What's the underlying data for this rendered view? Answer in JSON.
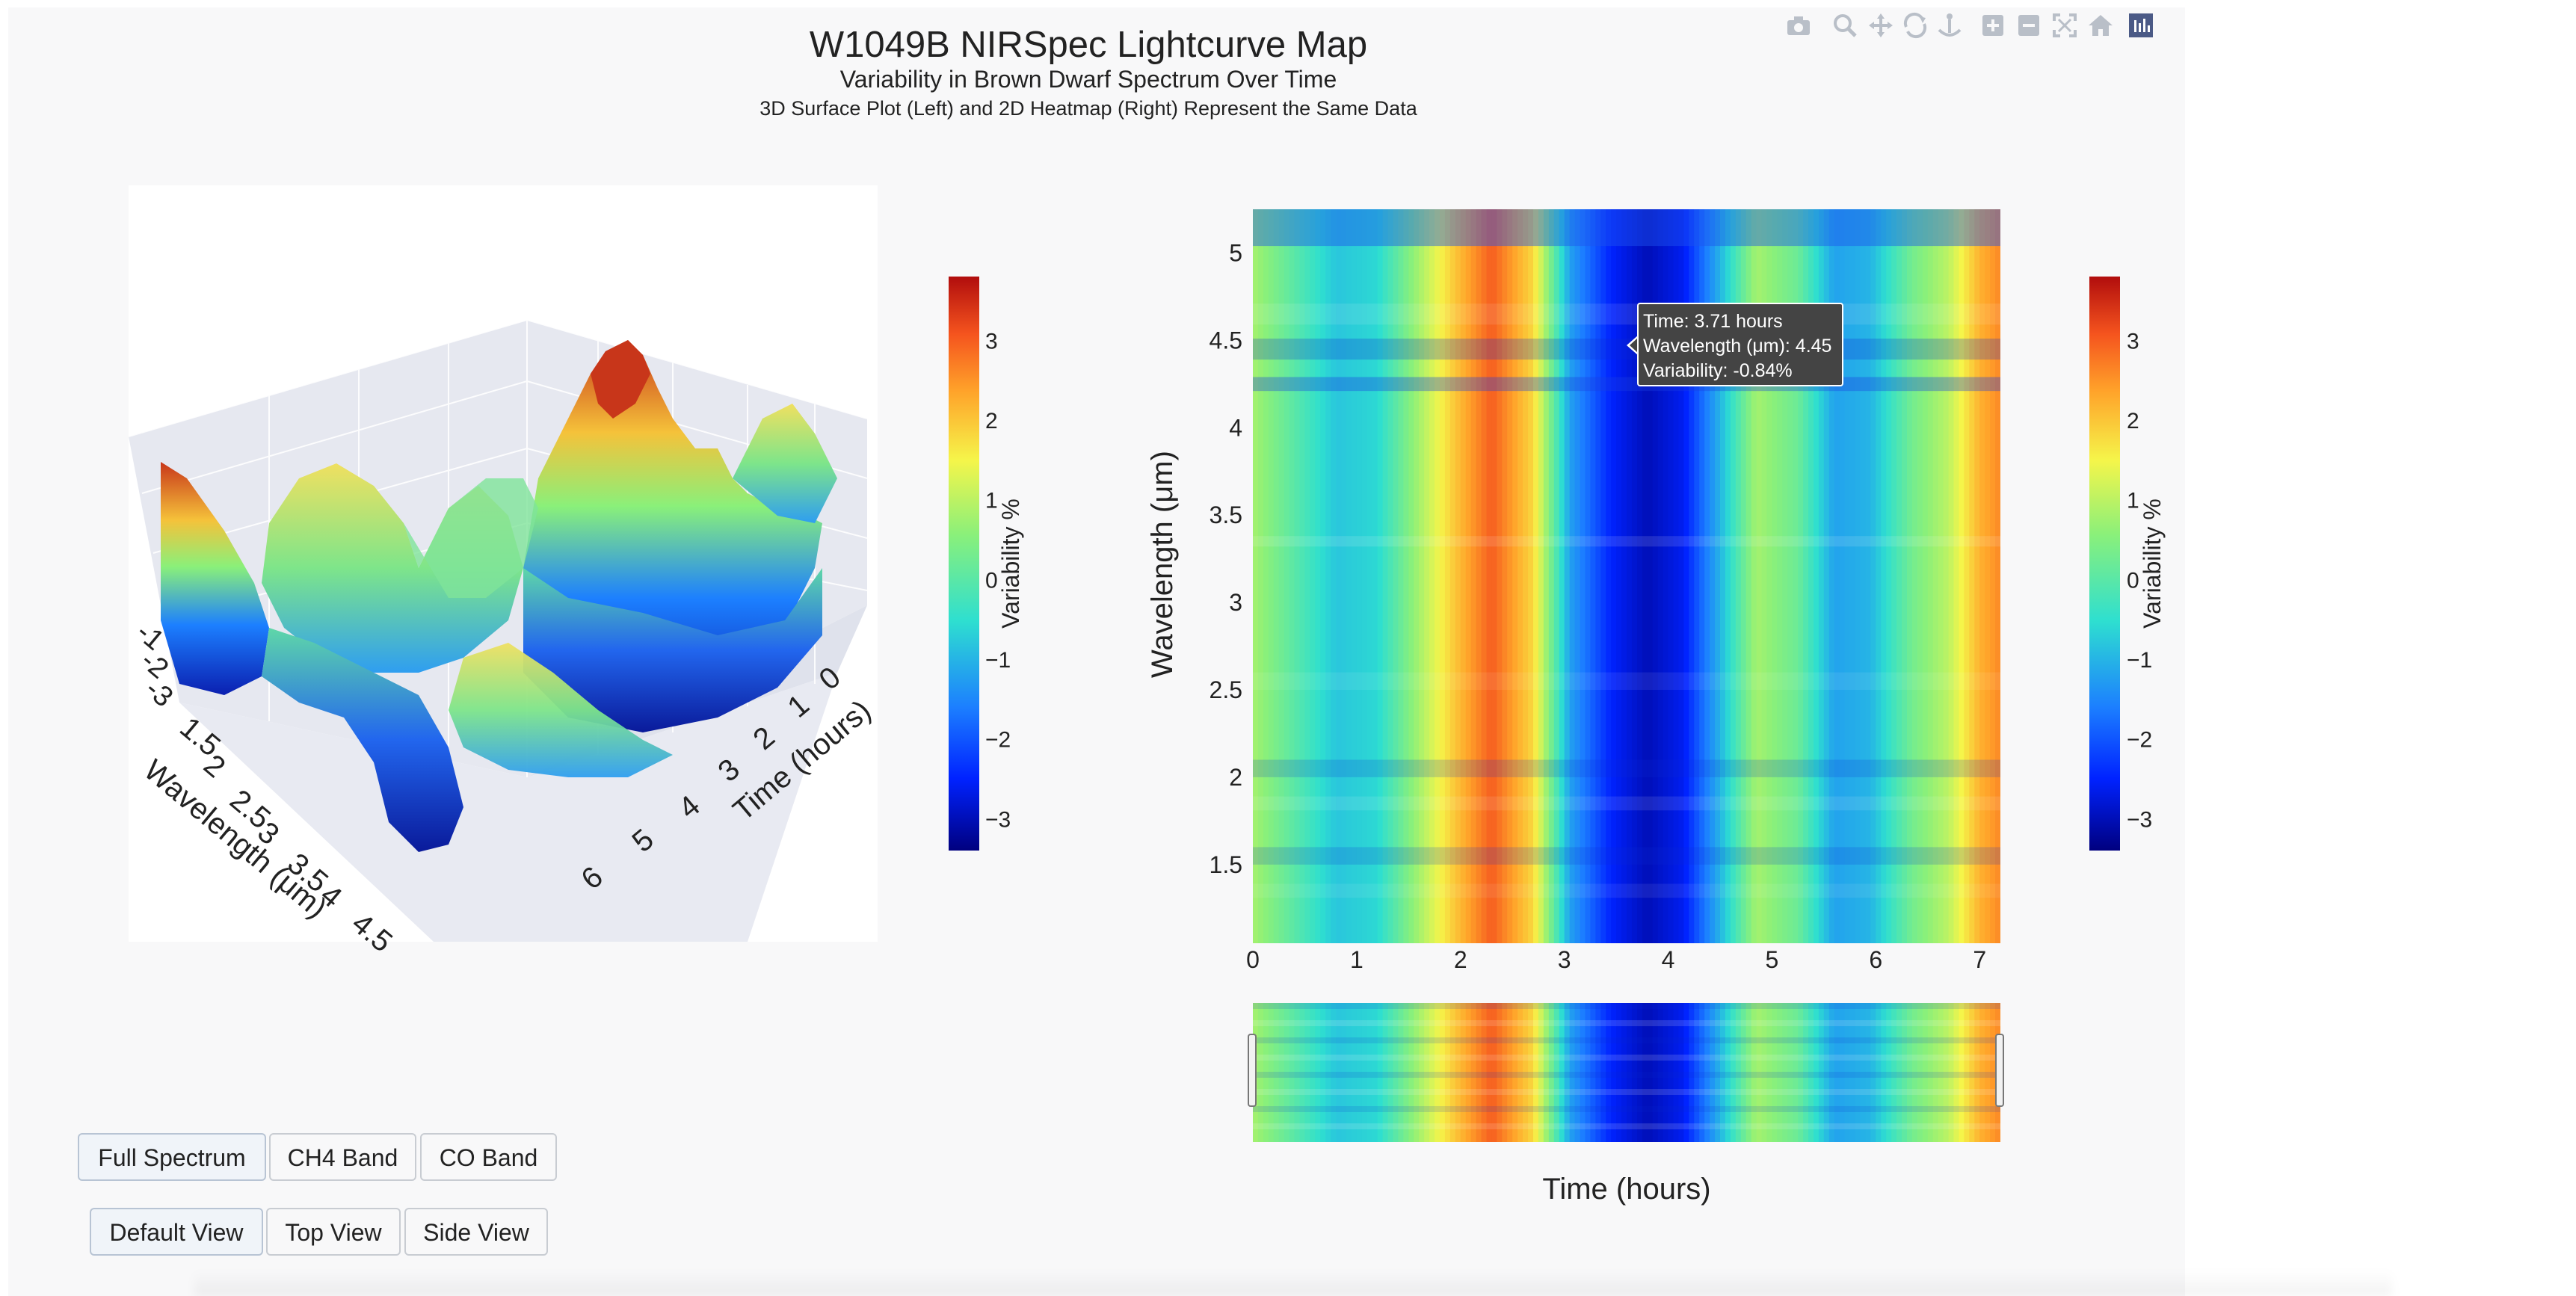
{
  "title": "W1049B NIRSpec Lightcurve Map",
  "subtitle": "Variability in Brown Dwarf Spectrum Over Time",
  "subtitle2": "3D Surface Plot (Left) and 2D Heatmap (Right) Represent the Same Data",
  "modebar": {
    "icons": [
      "camera-icon",
      "zoom-icon",
      "pan-icon",
      "orbit-icon",
      "turntable-icon",
      "zoom-in-icon",
      "zoom-out-icon",
      "autoscale-icon",
      "reset-icon",
      "plotly-logo-icon"
    ]
  },
  "buttons": {
    "band_row": [
      "Full Spectrum",
      "CH4 Band",
      "CO Band"
    ],
    "view_row": [
      "Default View",
      "Top View",
      "Side View"
    ]
  },
  "tooltip": {
    "line1": "Time: 3.71 hours",
    "line2": "Wavelength (μm): 4.45",
    "line3": "Variability: -0.84%"
  },
  "colors": {
    "colorscale": [
      "#00007f",
      "#0022ff",
      "#1c7fff",
      "#2edfd0",
      "#8af07a",
      "#f5f54a",
      "#ffa32a",
      "#f5541e",
      "#b10d0d"
    ],
    "panel_bg": "#f8f8f9",
    "tooltip_bg": "#444444"
  },
  "chart_data": [
    {
      "type": "surface",
      "scene_axes": {
        "x_title": "Time (hours)",
        "x_ticks": [
          "0",
          "1",
          "2",
          "3",
          "4",
          "5",
          "6"
        ],
        "y_title": "Wavelength (μm)",
        "y_ticks": [
          "1.5",
          "2",
          "2.5",
          "3",
          "3.5",
          "4",
          "4.5"
        ],
        "z_ticks": [
          "-1",
          "-2",
          "-3"
        ]
      },
      "colorbar": {
        "title": "Variability %",
        "ticks": [
          "3",
          "2",
          "1",
          "0",
          "−1",
          "−2",
          "−3"
        ],
        "range": [
          -3.4,
          3.8
        ]
      }
    },
    {
      "type": "heatmap",
      "xlabel": "Time (hours)",
      "ylabel": "Wavelength (μm)",
      "xlim": [
        0,
        7.2
      ],
      "ylim": [
        1.05,
        5.25
      ],
      "x_ticks": [
        "0",
        "1",
        "2",
        "3",
        "4",
        "5",
        "6",
        "7"
      ],
      "y_ticks": [
        "1.5",
        "2",
        "2.5",
        "3",
        "3.5",
        "4",
        "4.5",
        "5"
      ],
      "time_profile": [
        {
          "t": 0.0,
          "v": 0.8
        },
        {
          "t": 0.4,
          "v": 0.0
        },
        {
          "t": 0.8,
          "v": -0.8
        },
        {
          "t": 1.2,
          "v": -0.6
        },
        {
          "t": 1.6,
          "v": 0.8
        },
        {
          "t": 1.95,
          "v": 2.0
        },
        {
          "t": 2.3,
          "v": 3.0
        },
        {
          "t": 2.7,
          "v": 1.8
        },
        {
          "t": 3.05,
          "v": -1.2
        },
        {
          "t": 3.45,
          "v": -2.5
        },
        {
          "t": 3.8,
          "v": -3.0
        },
        {
          "t": 4.15,
          "v": -2.6
        },
        {
          "t": 4.5,
          "v": -1.0
        },
        {
          "t": 4.85,
          "v": 0.8
        },
        {
          "t": 5.25,
          "v": 0.2
        },
        {
          "t": 5.6,
          "v": -1.2
        },
        {
          "t": 5.95,
          "v": -1.0
        },
        {
          "t": 6.35,
          "v": 0.3
        },
        {
          "t": 6.7,
          "v": 1.0
        },
        {
          "t": 7.0,
          "v": 2.2
        },
        {
          "t": 7.2,
          "v": 2.6
        }
      ],
      "colorbar": {
        "title": "Variability %",
        "ticks": [
          "3",
          "2",
          "1",
          "0",
          "−1",
          "−2",
          "−3"
        ],
        "range": [
          -3.4,
          3.8
        ]
      },
      "hover_point": {
        "time": 3.71,
        "wavelength": 4.45,
        "variability": -0.84
      }
    }
  ]
}
